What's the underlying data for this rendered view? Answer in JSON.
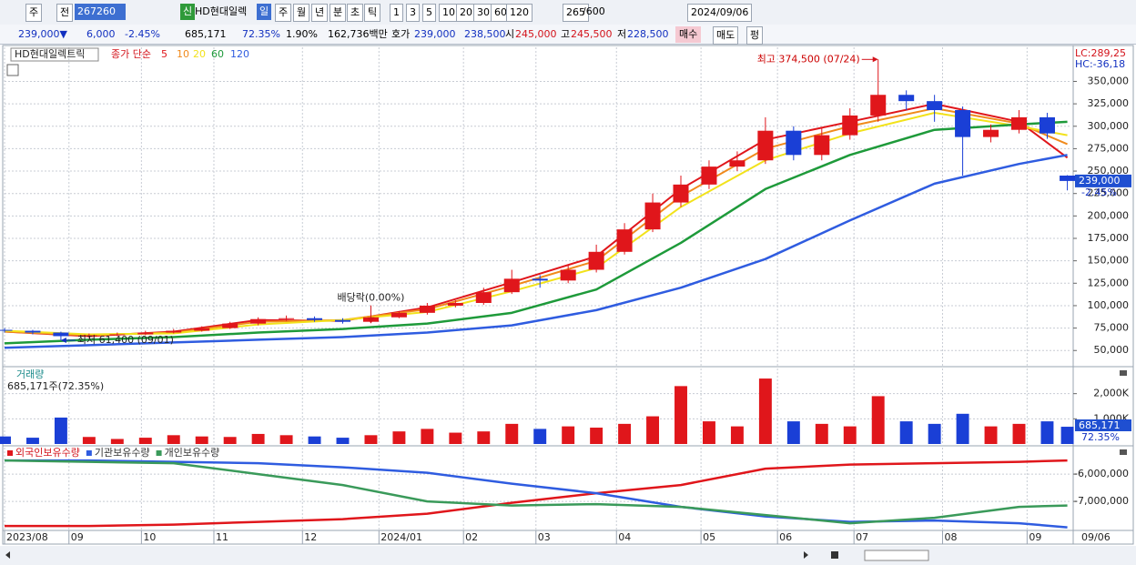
{
  "toolbar": {
    "items": [
      "주",
      "전",
      "267260",
      "신",
      "HD현대일렉",
      "일",
      "주",
      "월",
      "년",
      "분",
      "초",
      "틱",
      "1",
      "3",
      "5",
      "10",
      "20",
      "30",
      "60",
      "120",
      "265",
      "/600",
      "2024/09/06"
    ]
  },
  "info_bar": {
    "items": [
      "239,000▼",
      "6,000",
      "-2.45%",
      "685,171",
      "72.35%",
      "1.90%",
      "162,736백만",
      "호가",
      "239,000",
      "238,500",
      "시",
      "245,000",
      "고",
      "245,500",
      "저",
      "228,500",
      "매수",
      "매도",
      "펑"
    ]
  },
  "x_axis": {
    "xlim": [
      0,
      265
    ],
    "ticks": [
      {
        "value": 0,
        "label": "2023/08"
      },
      {
        "value": 16,
        "label": "09"
      },
      {
        "value": 34,
        "label": "10"
      },
      {
        "value": 52,
        "label": "11"
      },
      {
        "value": 74,
        "label": "12"
      },
      {
        "value": 93,
        "label": "2024/01"
      },
      {
        "value": 114,
        "label": "02"
      },
      {
        "value": 132,
        "label": "03"
      },
      {
        "value": 152,
        "label": "04"
      },
      {
        "value": 173,
        "label": "05"
      },
      {
        "value": 192,
        "label": "06"
      },
      {
        "value": 211,
        "label": "07"
      },
      {
        "value": 233,
        "label": "08"
      },
      {
        "value": 254,
        "label": "09"
      }
    ],
    "end_label": "09/06"
  },
  "chart_data": [
    {
      "type": "candlestick",
      "title": "HD현대일렉트릭",
      "indicator": "종가 단순",
      "up_color": "#e0161b",
      "down_color": "#1a3fd6",
      "x": [
        0,
        7,
        14,
        21,
        28,
        35,
        42,
        49,
        56,
        63,
        70,
        77,
        84,
        91,
        98,
        105,
        112,
        119,
        126,
        133,
        140,
        147,
        154,
        161,
        168,
        175,
        182,
        189,
        196,
        203,
        210,
        217,
        224,
        231,
        238,
        245,
        252,
        259,
        264
      ],
      "open": [
        73000,
        72000,
        70000,
        66000,
        67000,
        68000,
        70000,
        72000,
        75000,
        80000,
        85000,
        86000,
        84000,
        82000,
        87000,
        92000,
        100000,
        103000,
        115000,
        130000,
        128000,
        140000,
        160000,
        185000,
        215000,
        235000,
        255000,
        262000,
        295000,
        268000,
        290000,
        312000,
        335000,
        328000,
        318000,
        288000,
        296000,
        310000,
        245000
      ],
      "high": [
        75000,
        73000,
        71000,
        69000,
        70000,
        72000,
        74000,
        77000,
        82000,
        87000,
        89000,
        88000,
        86000,
        89000,
        94000,
        103000,
        106000,
        120000,
        140000,
        134000,
        145000,
        168000,
        192000,
        225000,
        245000,
        262000,
        272000,
        310000,
        300000,
        298000,
        320000,
        374500,
        340000,
        335000,
        322000,
        302000,
        318000,
        315000,
        245500
      ],
      "low": [
        70000,
        68000,
        61400,
        64000,
        66000,
        67000,
        69000,
        71000,
        74000,
        78000,
        83000,
        82000,
        80000,
        81000,
        86000,
        90000,
        98000,
        101000,
        113000,
        120000,
        125000,
        137000,
        157000,
        182000,
        210000,
        230000,
        250000,
        258000,
        262000,
        262000,
        285000,
        305000,
        318000,
        305000,
        245000,
        282000,
        292000,
        286000,
        228500
      ],
      "close": [
        72000,
        70000,
        66000,
        67000,
        68000,
        70000,
        72000,
        75000,
        80000,
        85000,
        86000,
        84000,
        82000,
        87000,
        92000,
        100000,
        103000,
        115000,
        130000,
        128000,
        140000,
        160000,
        185000,
        215000,
        235000,
        255000,
        262000,
        295000,
        268000,
        290000,
        312000,
        335000,
        328000,
        318000,
        288000,
        296000,
        310000,
        292000,
        239000
      ],
      "series": [
        {
          "name": "5",
          "color": "#e0161b",
          "x": [
            0,
            21,
            42,
            63,
            84,
            105,
            126,
            147,
            168,
            189,
            210,
            231,
            252,
            264
          ],
          "values": [
            71000,
            66000,
            71000,
            84000,
            83000,
            98000,
            126000,
            155000,
            230000,
            285000,
            305000,
            325000,
            305000,
            265000
          ]
        },
        {
          "name": "10",
          "color": "#f08a1c",
          "x": [
            0,
            21,
            42,
            63,
            84,
            105,
            126,
            147,
            168,
            189,
            210,
            231,
            252,
            264
          ],
          "values": [
            71000,
            67000,
            70000,
            82000,
            84000,
            96000,
            122000,
            150000,
            222000,
            275000,
            300000,
            320000,
            303000,
            280000
          ]
        },
        {
          "name": "20",
          "color": "#f2e21b",
          "x": [
            0,
            21,
            42,
            63,
            84,
            105,
            126,
            147,
            168,
            189,
            210,
            231,
            252,
            264
          ],
          "values": [
            72000,
            68000,
            69000,
            79000,
            84000,
            93000,
            116000,
            142000,
            210000,
            262000,
            292000,
            315000,
            300000,
            290000
          ]
        },
        {
          "name": "60",
          "color": "#1e9a3a",
          "x": [
            0,
            21,
            42,
            63,
            84,
            105,
            126,
            147,
            168,
            189,
            210,
            231,
            252,
            264
          ],
          "values": [
            58000,
            62000,
            65000,
            70000,
            74000,
            80000,
            92000,
            118000,
            170000,
            230000,
            268000,
            296000,
            302000,
            305000
          ]
        },
        {
          "name": "120",
          "color": "#2f5ce0",
          "x": [
            0,
            21,
            42,
            63,
            84,
            105,
            126,
            147,
            168,
            189,
            210,
            231,
            252,
            264
          ],
          "values": [
            53000,
            56000,
            59000,
            62000,
            65000,
            70000,
            78000,
            95000,
            120000,
            152000,
            195000,
            236000,
            258000,
            268000
          ]
        }
      ],
      "ylim": [
        33000,
        388000
      ],
      "yticks": [
        {
          "value": 50000,
          "label": "50,000"
        },
        {
          "value": 75000,
          "label": "75,000"
        },
        {
          "value": 100000,
          "label": "100,000"
        },
        {
          "value": 125000,
          "label": "125,000"
        },
        {
          "value": 150000,
          "label": "150,000"
        },
        {
          "value": 175000,
          "label": "175,000"
        },
        {
          "value": 200000,
          "label": "200,000"
        },
        {
          "value": 225000,
          "label": "225,000"
        },
        {
          "value": 250000,
          "label": "250,000"
        },
        {
          "value": 275000,
          "label": "275,000"
        },
        {
          "value": 300000,
          "label": "300,000"
        },
        {
          "value": 325000,
          "label": "325,000"
        },
        {
          "value": 350000,
          "label": "350,000"
        }
      ],
      "annotations": [
        {
          "text": "최고 374,500 (07/24)",
          "x": 217,
          "y": 374500,
          "direction": "left"
        },
        {
          "text": "최저 61,400 (09/01)",
          "x": 14,
          "y": 61400,
          "direction": "right"
        },
        {
          "text": "배당락(0.00%)",
          "x": 91,
          "y": 80000,
          "direction": "down"
        }
      ],
      "right_labels": {
        "lc": "LC:289,25",
        "hc": "HC:-36,18",
        "last": "239,000",
        "change": "-2.45%"
      }
    },
    {
      "type": "bar",
      "title": "거래량",
      "subtitle": "685,171주(72.35%)",
      "x": [
        0,
        7,
        14,
        21,
        28,
        35,
        42,
        49,
        56,
        63,
        70,
        77,
        84,
        91,
        98,
        105,
        112,
        119,
        126,
        133,
        140,
        147,
        154,
        161,
        168,
        175,
        182,
        189,
        196,
        203,
        210,
        217,
        224,
        231,
        238,
        245,
        252,
        259,
        264
      ],
      "values": [
        300000,
        250000,
        1050000,
        280000,
        200000,
        250000,
        350000,
        300000,
        280000,
        400000,
        350000,
        300000,
        250000,
        350000,
        500000,
        600000,
        450000,
        500000,
        800000,
        600000,
        700000,
        650000,
        800000,
        1100000,
        2300000,
        900000,
        700000,
        2600000,
        900000,
        800000,
        700000,
        1900000,
        900000,
        800000,
        1200000,
        700000,
        800000,
        900000,
        685171
      ],
      "ylim": [
        0,
        3000000
      ],
      "yticks": [
        {
          "value": 1000000,
          "label": "1,000K"
        },
        {
          "value": 2000000,
          "label": "2,000K"
        }
      ],
      "right_labels": {
        "last": "685,171",
        "ratio": "72.35%"
      }
    },
    {
      "type": "line",
      "series": [
        {
          "name": "외국인보유수량",
          "color": "#e0161b",
          "x": [
            0,
            21,
            42,
            63,
            84,
            105,
            126,
            147,
            168,
            189,
            210,
            231,
            252,
            264
          ],
          "values": [
            -7900000,
            -7900000,
            -7850000,
            -7750000,
            -7650000,
            -7450000,
            -7050000,
            -6700000,
            -6400000,
            -5800000,
            -5650000,
            -5600000,
            -5550000,
            -5500000
          ]
        },
        {
          "name": "기관보유수량",
          "color": "#2f5ce0",
          "x": [
            0,
            21,
            42,
            63,
            84,
            105,
            126,
            147,
            168,
            189,
            210,
            231,
            252,
            264
          ],
          "values": [
            -5500000,
            -5500000,
            -5550000,
            -5600000,
            -5750000,
            -5950000,
            -6350000,
            -6700000,
            -7200000,
            -7550000,
            -7750000,
            -7700000,
            -7800000,
            -7950000
          ]
        },
        {
          "name": "개인보유수량",
          "color": "#3a9a5a",
          "x": [
            0,
            21,
            42,
            63,
            84,
            105,
            126,
            147,
            168,
            189,
            210,
            231,
            252,
            264
          ],
          "values": [
            -5500000,
            -5550000,
            -5600000,
            -6000000,
            -6400000,
            -7000000,
            -7150000,
            -7100000,
            -7200000,
            -7500000,
            -7800000,
            -7600000,
            -7200000,
            -7150000
          ]
        }
      ],
      "ylim": [
        -8030000,
        -5030000
      ],
      "yticks": [
        {
          "value": -6000000,
          "label": "-6,000,000"
        },
        {
          "value": -7000000,
          "label": "-7,000,000"
        }
      ]
    }
  ]
}
